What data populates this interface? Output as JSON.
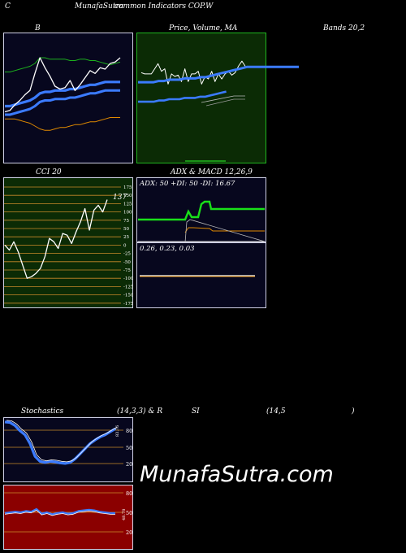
{
  "header": {
    "left": "C",
    "title_a": "MunafaSutra",
    "title_b": "common Indicators COP.W"
  },
  "bollinger": {
    "title_left": "B",
    "title_mid": "Price, Volume, MA",
    "title_right": "Bands 20,2",
    "colors": {
      "bg": "#07071e",
      "upper": "#1db11d",
      "lower": "#e08a00",
      "price": "#ffffff",
      "ma": "#3b7bff"
    }
  },
  "price_ma": {
    "colors": {
      "bg": "#0b2b05",
      "border": "#1fb51f",
      "price": "#ffffff",
      "ma": "#3b7bff"
    }
  },
  "cci": {
    "title_left": "CCI 20",
    "value_label": "137",
    "ticks": [
      "175",
      "150",
      "125",
      "100",
      "75",
      "50",
      "25",
      "0",
      "-25",
      "-50",
      "-75",
      "-100",
      "-125",
      "-150",
      "-175"
    ]
  },
  "adx_macd": {
    "title": "ADX  & MACD 12,26,9",
    "adx_line": "ADX: 50  +DI: 50  -DI: 16.67",
    "macd_line": "0.26,  0.23,  0.03"
  },
  "stoch_rsi": {
    "title_left": "Stochastics",
    "title_mid": "(14,3,3) & R",
    "title_si": "SI",
    "title_right": "(14,5",
    "title_paren": ")",
    "stoch_ticks": [
      "80",
      "50",
      "20"
    ],
    "rsi_ticks": [
      "80",
      "50",
      "20"
    ],
    "stoch_label": "83.76",
    "rsi_label": "48.78"
  },
  "watermark": "MunafaSutra.com",
  "chart_data": [
    {
      "type": "line",
      "title": "Bands 20,2",
      "series": [
        {
          "values": [
            70,
            71,
            75,
            78,
            82,
            85,
            97,
            108,
            101,
            95,
            88,
            86,
            87,
            92,
            85,
            89,
            94,
            99,
            97,
            101,
            100,
            104,
            105,
            108
          ]
        },
        {
          "values": [
            98,
            98,
            99,
            100,
            101,
            102,
            104,
            108,
            108,
            107,
            107,
            107,
            107,
            106,
            106,
            107,
            107,
            106,
            106,
            105,
            104,
            103,
            104,
            105
          ]
        },
        {
          "values": [
            74,
            74,
            75,
            76,
            77,
            78,
            80,
            83,
            84,
            84,
            85,
            85,
            85,
            86,
            86,
            87,
            88,
            89,
            89,
            90,
            91,
            91,
            91,
            91
          ]
        },
        {
          "values": [
            65,
            65,
            65,
            64,
            63,
            62,
            60,
            58,
            57,
            57,
            58,
            59,
            59,
            60,
            61,
            61,
            62,
            63,
            63,
            64,
            65,
            66,
            66,
            66
          ]
        }
      ]
    },
    {
      "type": "line",
      "title": "Price, Volume, MA",
      "series": [
        {
          "values": [
            105,
            104,
            104,
            104,
            108,
            112,
            106,
            108,
            96,
            104,
            102,
            103,
            98,
            108,
            98,
            104,
            104,
            106,
            96,
            102,
            100,
            106,
            98,
            104,
            100,
            104,
            106,
            103,
            105,
            110,
            114,
            110
          ]
        },
        {
          "values": [
            86,
            86,
            86,
            86,
            87,
            87,
            88,
            88,
            88,
            89,
            89,
            89,
            90,
            90,
            91,
            92,
            93,
            94,
            95,
            96,
            97,
            98,
            98,
            98,
            98,
            98,
            98,
            98,
            98,
            98,
            98,
            98
          ]
        }
      ]
    },
    {
      "type": "line",
      "title": "CCI 20",
      "ylim": [
        -175,
        175
      ],
      "series": [
        {
          "values": [
            0,
            -15,
            10,
            -20,
            -60,
            -100,
            -95,
            -85,
            -70,
            -35,
            20,
            10,
            -10,
            35,
            30,
            5,
            40,
            70,
            110,
            45,
            105,
            120,
            100,
            137
          ]
        }
      ]
    },
    {
      "type": "line",
      "title": "ADX & MACD 12,26,9",
      "series": [
        {
          "name": "ADX",
          "values": [
            50
          ]
        },
        {
          "name": "+DI",
          "values": [
            50
          ]
        },
        {
          "name": "-DI",
          "values": [
            16.67
          ]
        },
        {
          "name": "MACD",
          "values": [
            0.26,
            0.23,
            0.03
          ]
        }
      ]
    },
    {
      "type": "line",
      "title": "Stochastics (14,3,3)",
      "ylim": [
        0,
        100
      ],
      "series": [
        {
          "values": [
            97,
            96,
            90,
            80,
            72,
            55,
            30,
            20,
            18,
            20,
            19,
            17,
            16,
            18,
            25,
            35,
            45,
            55,
            62,
            68,
            72,
            78,
            83.76
          ]
        }
      ]
    },
    {
      "type": "line",
      "title": "RSI (14,5)",
      "ylim": [
        0,
        100
      ],
      "series": [
        {
          "values": [
            49,
            50,
            51,
            50,
            52,
            51,
            55,
            48,
            50,
            47,
            49,
            50,
            48,
            49,
            52,
            53,
            54,
            53,
            51,
            50,
            49,
            48.78
          ]
        }
      ]
    }
  ]
}
